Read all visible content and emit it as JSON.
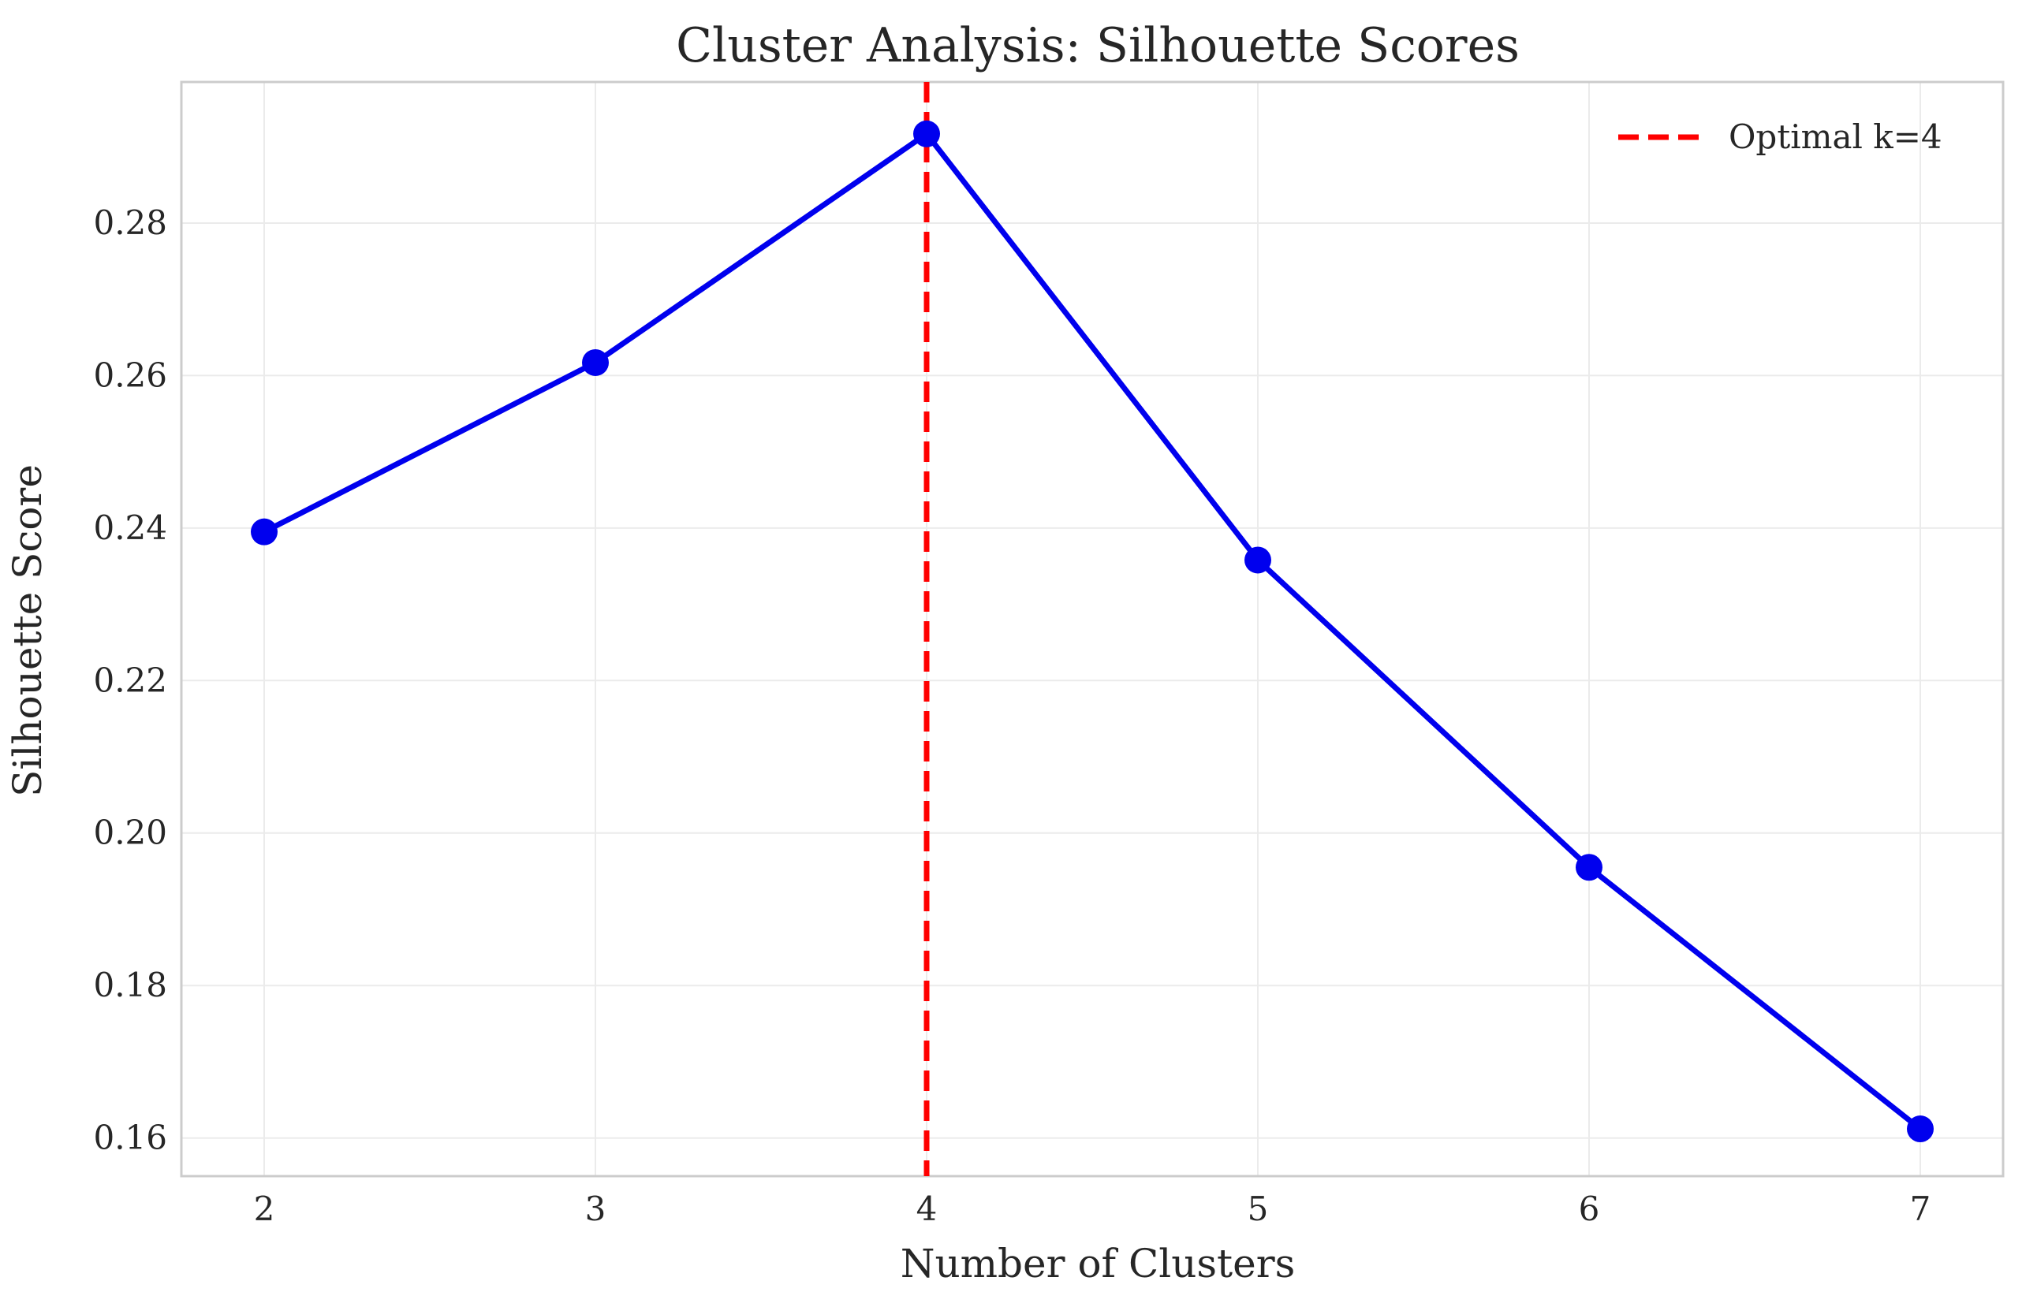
{
  "chart_data": {
    "type": "line",
    "title": "Cluster Analysis: Silhouette Scores",
    "xlabel": "Number of Clusters",
    "ylabel": "Silhouette Score",
    "x": [
      2,
      3,
      4,
      5,
      6,
      7
    ],
    "xlim": [
      1.75,
      7.25
    ],
    "ylim": [
      0.155,
      0.2985
    ],
    "xticks": [
      2,
      3,
      4,
      5,
      6,
      7
    ],
    "yticks": [
      0.16,
      0.18,
      0.2,
      0.22,
      0.24,
      0.26,
      0.28
    ],
    "grid": true,
    "series": [
      {
        "values": [
          0.2395,
          0.2617,
          0.2917,
          0.2358,
          0.1955,
          0.1612
        ],
        "color": "#0000ee",
        "marker": "circle"
      }
    ],
    "reference_line": {
      "orientation": "vertical",
      "x": 4,
      "label": "Optimal k=4",
      "color": "#ff0000",
      "style": "dashed"
    },
    "legend": {
      "position": "top-right",
      "entries": [
        "Optimal k=4"
      ]
    }
  }
}
